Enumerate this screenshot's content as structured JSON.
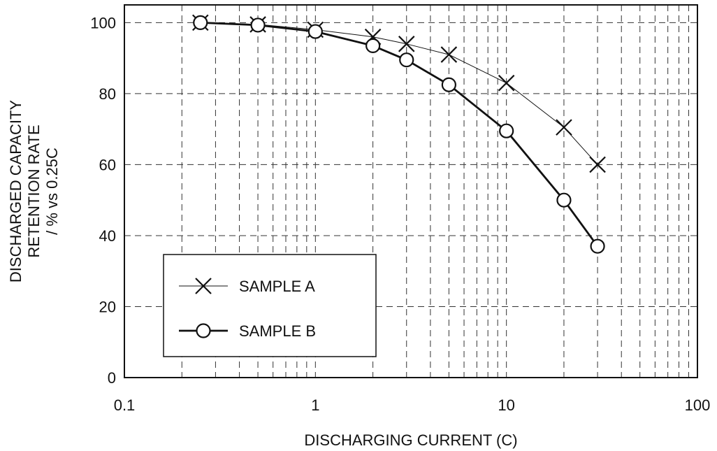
{
  "chart_data": {
    "type": "line",
    "xlabel": "DISCHARGING CURRENT (C)",
    "ylabel_lines": [
      "DISCHARGED CAPACITY",
      "RETENTION RATE",
      "/ % vs 0.25C"
    ],
    "x_scale": "log",
    "xlim": [
      0.1,
      100
    ],
    "ylim": [
      0,
      105
    ],
    "x_ticks": [
      0.1,
      1,
      10,
      100
    ],
    "x_tick_labels": [
      "0.1",
      "1",
      "10",
      "100"
    ],
    "y_ticks": [
      0,
      20,
      40,
      60,
      80,
      100
    ],
    "y_tick_labels": [
      "0",
      "20",
      "40",
      "60",
      "80",
      "100"
    ],
    "grid": true,
    "legend_position": "lower-left",
    "series": [
      {
        "name": "SAMPLE A",
        "marker": "x",
        "line_weight": "thin",
        "color": "#111111",
        "x": [
          0.25,
          0.5,
          1,
          2,
          3,
          5,
          10,
          20,
          30
        ],
        "y": [
          100,
          99.5,
          98,
          96,
          94,
          91,
          83,
          70.5,
          60
        ]
      },
      {
        "name": "SAMPLE B",
        "marker": "circle",
        "line_weight": "thick",
        "color": "#111111",
        "x": [
          0.25,
          0.5,
          1,
          2,
          3,
          5,
          10,
          20,
          30
        ],
        "y": [
          100,
          99.3,
          97.5,
          93.5,
          89.5,
          82.5,
          69.5,
          50,
          37
        ]
      }
    ]
  }
}
